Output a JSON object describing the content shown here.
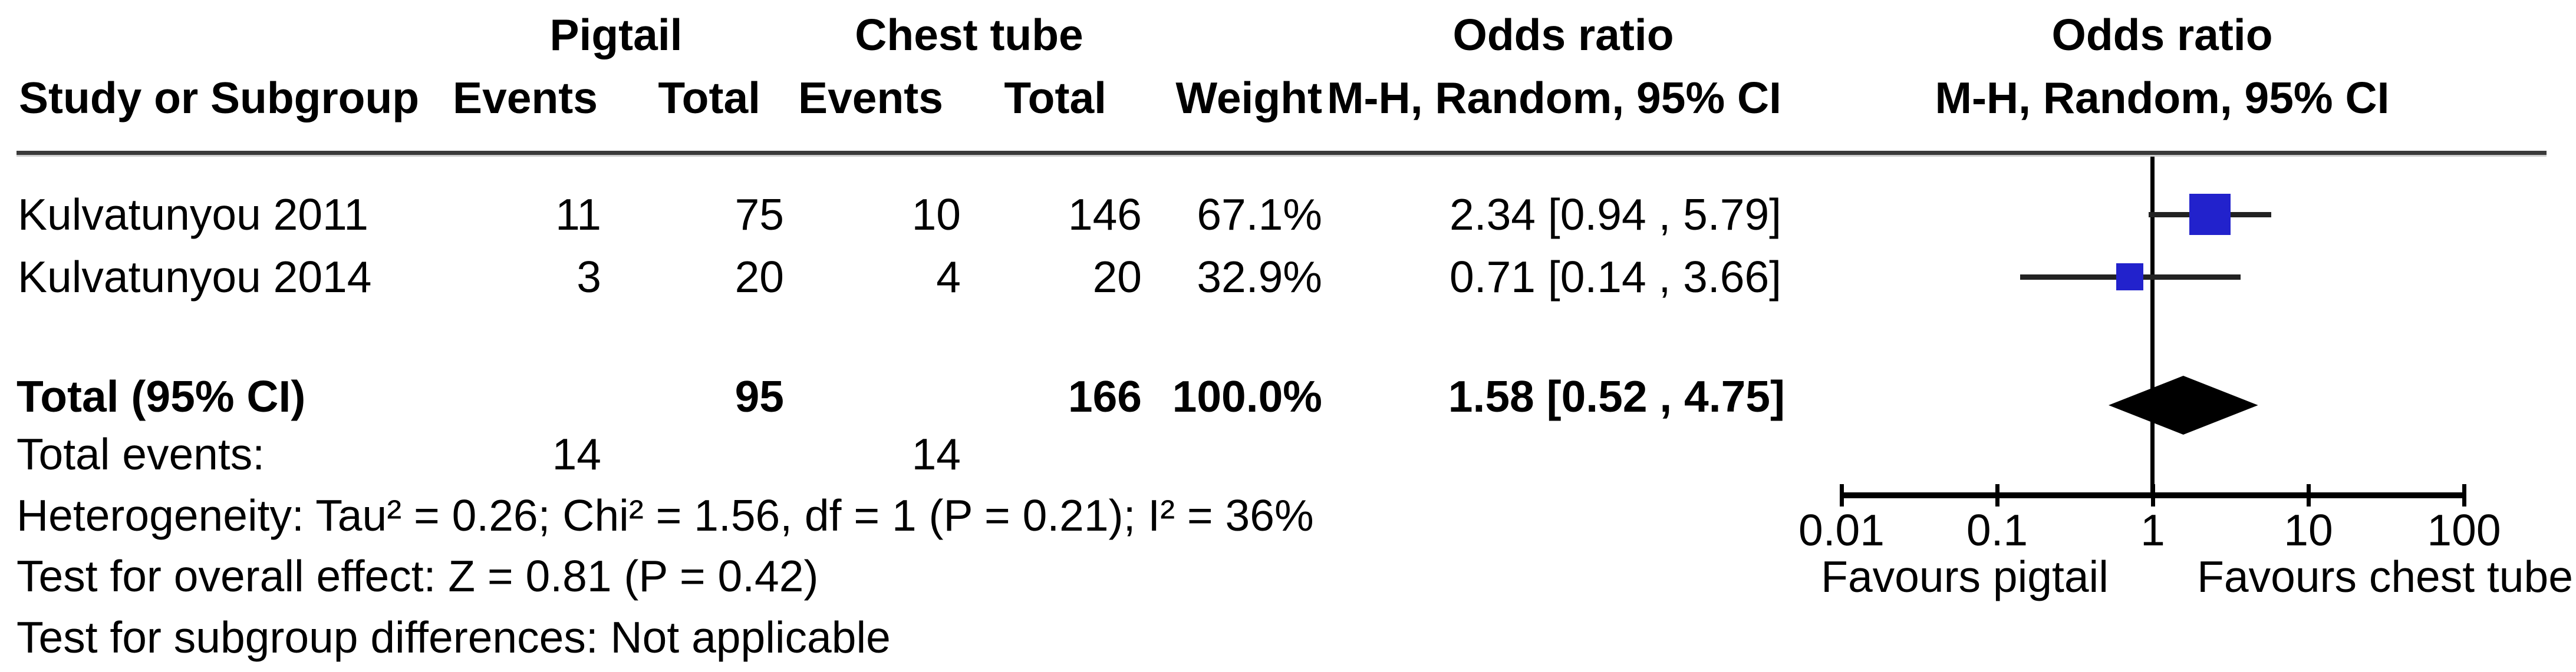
{
  "header": {
    "group": {
      "pigtail": "Pigtail",
      "chest_tube": "Chest tube",
      "odds_ratio_text": "Odds ratio",
      "odds_ratio_plot": "Odds ratio"
    },
    "columns": {
      "study": "Study or Subgroup",
      "events_pigtail": "Events",
      "total_pigtail": "Total",
      "events_chest": "Events",
      "total_chest": "Total",
      "weight": "Weight",
      "or_ci_text": "M-H, Random, 95% CI",
      "or_ci_plot": "M-H, Random, 95% CI"
    }
  },
  "table": {
    "rows": [
      {
        "study": "Kulvatunyou 2011",
        "events_pigtail": "11",
        "total_pigtail": "75",
        "events_chest": "10",
        "total_chest": "146",
        "weight": "67.1%",
        "or_ci": "2.34 [0.94 , 5.79]"
      },
      {
        "study": "Kulvatunyou 2014",
        "events_pigtail": "3",
        "total_pigtail": "20",
        "events_chest": "4",
        "total_chest": "20",
        "weight": "32.9%",
        "or_ci": "0.71 [0.14 , 3.66]"
      }
    ],
    "total": {
      "label": "Total (95% CI)",
      "total_pigtail": "95",
      "total_chest": "166",
      "weight": "100.0%",
      "or_ci": "1.58 [0.52 , 4.75]"
    },
    "total_events": {
      "label": "Total events:",
      "events_pigtail": "14",
      "events_chest": "14"
    },
    "footnotes": {
      "heterogeneity": "Heterogeneity: Tau² = 0.26; Chi² = 1.56, df = 1 (P = 0.21); I² = 36%",
      "overall_effect": "Test for overall effect: Z = 0.81 (P = 0.42)",
      "subgroup_differences": "Test for subgroup differences: Not applicable"
    }
  },
  "axis": {
    "tick_labels": [
      "0.01",
      "0.1",
      "1",
      "10",
      "100"
    ],
    "favours_left": "Favours pigtail",
    "favours_right": "Favours chest tube"
  },
  "chart_data": {
    "type": "forest",
    "effect_measure": "Odds ratio",
    "method": "M-H, Random, 95% CI",
    "comparison": {
      "experimental": "Pigtail",
      "control": "Chest tube"
    },
    "studies": [
      {
        "name": "Kulvatunyou 2011",
        "events_pigtail": 11,
        "total_pigtail": 75,
        "events_chest": 10,
        "total_chest": 146,
        "weight_pct": 67.1,
        "or": 2.34,
        "ci_low": 0.94,
        "ci_high": 5.79
      },
      {
        "name": "Kulvatunyou 2014",
        "events_pigtail": 3,
        "total_pigtail": 20,
        "events_chest": 4,
        "total_chest": 20,
        "weight_pct": 32.9,
        "or": 0.71,
        "ci_low": 0.14,
        "ci_high": 3.66
      }
    ],
    "total": {
      "total_pigtail": 95,
      "total_chest": 166,
      "weight_pct": 100.0,
      "or": 1.58,
      "ci_low": 0.52,
      "ci_high": 4.75,
      "total_events_pigtail": 14,
      "total_events_chest": 14
    },
    "axis": {
      "scale": "log10",
      "ticks": [
        0.01,
        0.1,
        1,
        10,
        100
      ],
      "label_left": "Favours pigtail",
      "label_right": "Favours chest tube"
    },
    "heterogeneity": "Tau² = 0.26; Chi² = 1.56, df = 1 (P = 0.21); I² = 36%",
    "overall_effect": "Z = 0.81 (P = 0.42)",
    "subgroup_differences": "Not applicable",
    "marker_color": "#2222cc"
  }
}
